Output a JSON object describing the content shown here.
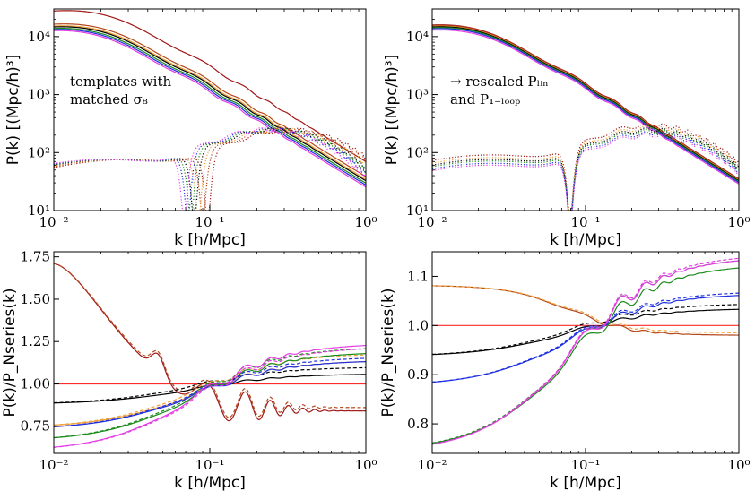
{
  "colors": {
    "black": "#000000",
    "red": "#ff2a2a",
    "darkred": "#a01818",
    "brown": "#b5481b",
    "orange": "#f2a33a",
    "green": "#1a8a1a",
    "blue": "#1f2fe0",
    "magenta": "#e43ce4",
    "gray": "#888888"
  },
  "chart_data": [
    {
      "id": "top-left",
      "type": "line",
      "xscale": "log",
      "yscale": "log",
      "xlim": [
        0.01,
        1
      ],
      "ylim": [
        10,
        30000
      ],
      "xlabel": "k  [h/Mpc]",
      "ylabel": "P(k)  [(Mpc/h)³]",
      "xticks": [
        {
          "value": 0.01,
          "label": "10⁻²"
        },
        {
          "value": 0.1,
          "label": "10⁻¹"
        },
        {
          "value": 1,
          "label": "10⁰"
        }
      ],
      "yticks": [
        {
          "value": 10,
          "label": "10¹"
        },
        {
          "value": 100,
          "label": "10²"
        },
        {
          "value": 1000,
          "label": "10³"
        },
        {
          "value": 10000,
          "label": "10⁴"
        }
      ],
      "annotation": [
        "templates with",
        "matched σ₈"
      ],
      "series": [
        {
          "color": "darkred",
          "style": "solid",
          "amp": 1.9,
          "shift": 0.93
        },
        {
          "color": "brown",
          "style": "solid",
          "amp": 1.12,
          "shift": 0.97
        },
        {
          "color": "orange",
          "style": "solid",
          "amp": 1.04,
          "shift": 0.99
        },
        {
          "color": "black",
          "style": "solid",
          "amp": 1.0,
          "shift": 1.0
        },
        {
          "color": "green",
          "style": "solid",
          "amp": 0.94,
          "shift": 1.02
        },
        {
          "color": "blue",
          "style": "solid",
          "amp": 0.9,
          "shift": 1.04
        },
        {
          "color": "magenta",
          "style": "solid",
          "amp": 0.86,
          "shift": 1.06
        },
        {
          "color": "darkred",
          "style": "dotted",
          "amp": 1.0,
          "shift": 0.82
        },
        {
          "color": "brown",
          "style": "dotted",
          "amp": 1.0,
          "shift": 0.88
        },
        {
          "color": "orange",
          "style": "dotted",
          "amp": 1.0,
          "shift": 0.94
        },
        {
          "color": "black",
          "style": "dotted",
          "amp": 1.0,
          "shift": 1.0
        },
        {
          "color": "green",
          "style": "dotted",
          "amp": 1.0,
          "shift": 1.05
        },
        {
          "color": "blue",
          "style": "dotted",
          "amp": 1.0,
          "shift": 1.1
        },
        {
          "color": "magenta",
          "style": "dotted",
          "amp": 1.0,
          "shift": 1.16
        }
      ]
    },
    {
      "id": "top-right",
      "type": "line",
      "xscale": "log",
      "yscale": "log",
      "xlim": [
        0.01,
        1
      ],
      "ylim": [
        10,
        30000
      ],
      "xlabel": "k  [h/Mpc]",
      "ylabel": "P(k)  [(Mpc/h)³]",
      "xticks": [
        {
          "value": 0.01,
          "label": "10⁻²"
        },
        {
          "value": 0.1,
          "label": "10⁻¹"
        },
        {
          "value": 1,
          "label": "10⁰"
        }
      ],
      "yticks": [
        {
          "value": 10,
          "label": "10¹"
        },
        {
          "value": 100,
          "label": "10²"
        },
        {
          "value": 1000,
          "label": "10³"
        },
        {
          "value": 10000,
          "label": "10⁴"
        }
      ],
      "annotation": [
        "→ rescaled Pₗᵢₙ",
        "and P₁₋ₗₒₒₚ"
      ],
      "series": [
        {
          "color": "darkred",
          "style": "solid",
          "amp": 1.08,
          "shift": 1.0
        },
        {
          "color": "brown",
          "style": "solid",
          "amp": 1.05,
          "shift": 1.0
        },
        {
          "color": "orange",
          "style": "solid",
          "amp": 1.02,
          "shift": 1.0
        },
        {
          "color": "black",
          "style": "solid",
          "amp": 1.0,
          "shift": 1.0
        },
        {
          "color": "green",
          "style": "solid",
          "amp": 0.97,
          "shift": 1.0
        },
        {
          "color": "blue",
          "style": "solid",
          "amp": 0.93,
          "shift": 1.0
        },
        {
          "color": "magenta",
          "style": "solid",
          "amp": 0.88,
          "shift": 1.0
        },
        {
          "color": "darkred",
          "style": "dotted",
          "amp": 1.2,
          "shift": 1.0
        },
        {
          "color": "orange",
          "style": "dotted",
          "amp": 1.08,
          "shift": 1.0
        },
        {
          "color": "black",
          "style": "dotted",
          "amp": 1.0,
          "shift": 1.0
        },
        {
          "color": "green",
          "style": "dotted",
          "amp": 0.94,
          "shift": 1.0
        },
        {
          "color": "blue",
          "style": "dotted",
          "amp": 0.86,
          "shift": 1.0
        },
        {
          "color": "magenta",
          "style": "dotted",
          "amp": 0.8,
          "shift": 1.0
        }
      ]
    },
    {
      "id": "bottom-left",
      "type": "line",
      "xscale": "log",
      "yscale": "linear",
      "xlim": [
        0.01,
        1
      ],
      "ylim": [
        0.59,
        1.78
      ],
      "xlabel": "k  [h/Mpc]",
      "ylabel": "P(k)/P_Nseries(k)",
      "xticks": [
        {
          "value": 0.01,
          "label": "10⁻²"
        },
        {
          "value": 0.1,
          "label": "10⁻¹"
        },
        {
          "value": 1,
          "label": "10⁰"
        }
      ],
      "yticks": [
        {
          "value": 0.75,
          "label": "0.75"
        },
        {
          "value": 1.0,
          "label": "1.00"
        },
        {
          "value": 1.25,
          "label": "1.25"
        },
        {
          "value": 1.5,
          "label": "1.50"
        },
        {
          "value": 1.75,
          "label": "1.75"
        }
      ],
      "series": [
        {
          "color": "red",
          "style": "solid",
          "kind": "flat",
          "v0": 1.0,
          "v1": 1.0
        },
        {
          "color": "darkred",
          "style": "solid",
          "kind": "hump",
          "v0": 1.71,
          "v1": 0.84
        },
        {
          "color": "brown",
          "style": "dashed",
          "kind": "hump",
          "v0": 1.71,
          "v1": 0.86
        },
        {
          "color": "black",
          "style": "solid",
          "kind": "rise",
          "v0": 0.88,
          "v1": 1.06
        },
        {
          "color": "black",
          "style": "dashed",
          "kind": "rise",
          "v0": 0.88,
          "v1": 1.1
        },
        {
          "color": "orange",
          "style": "solid",
          "kind": "rise",
          "v0": 0.74,
          "v1": 1.14
        },
        {
          "color": "orange",
          "style": "dashed",
          "kind": "rise",
          "v0": 0.74,
          "v1": 1.18
        },
        {
          "color": "green",
          "style": "solid",
          "kind": "rise",
          "v0": 0.66,
          "v1": 1.19
        },
        {
          "color": "green",
          "style": "dashed",
          "kind": "rise",
          "v0": 0.66,
          "v1": 1.22
        },
        {
          "color": "blue",
          "style": "solid",
          "kind": "rise",
          "v0": 0.73,
          "v1": 1.14
        },
        {
          "color": "blue",
          "style": "dashed",
          "kind": "rise",
          "v0": 0.73,
          "v1": 1.16
        },
        {
          "color": "magenta",
          "style": "solid",
          "kind": "rise",
          "v0": 0.6,
          "v1": 1.24
        },
        {
          "color": "magenta",
          "style": "dashed",
          "kind": "rise",
          "v0": 0.6,
          "v1": 1.22
        }
      ]
    },
    {
      "id": "bottom-right",
      "type": "line",
      "xscale": "log",
      "yscale": "linear",
      "xlim": [
        0.01,
        1
      ],
      "ylim": [
        0.74,
        1.15
      ],
      "xlabel": "k  [h/Mpc]",
      "ylabel": "P(k)/P_Nseries(k)",
      "xticks": [
        {
          "value": 0.01,
          "label": "10⁻²"
        },
        {
          "value": 0.1,
          "label": "10⁻¹"
        },
        {
          "value": 1,
          "label": "10⁰"
        }
      ],
      "yticks": [
        {
          "value": 0.8,
          "label": "0.8"
        },
        {
          "value": 0.9,
          "label": "0.9"
        },
        {
          "value": 1.0,
          "label": "1.0"
        },
        {
          "value": 1.1,
          "label": "1.1"
        }
      ],
      "series": [
        {
          "color": "red",
          "style": "solid",
          "kind": "flat",
          "v0": 1.0,
          "v1": 1.0
        },
        {
          "color": "brown",
          "style": "solid",
          "kind": "fall",
          "v0": 1.082,
          "v1": 0.98
        },
        {
          "color": "orange",
          "style": "dashed",
          "kind": "fall",
          "v0": 1.082,
          "v1": 0.985
        },
        {
          "color": "black",
          "style": "solid",
          "kind": "rise",
          "v0": 0.937,
          "v1": 1.035
        },
        {
          "color": "black",
          "style": "dashed",
          "kind": "rise",
          "v0": 0.937,
          "v1": 1.045
        },
        {
          "color": "blue",
          "style": "solid",
          "kind": "rise",
          "v0": 0.877,
          "v1": 1.065
        },
        {
          "color": "blue",
          "style": "dashed",
          "kind": "rise",
          "v0": 0.877,
          "v1": 1.07
        },
        {
          "color": "green",
          "style": "solid",
          "kind": "rise",
          "v0": 0.745,
          "v1": 1.125
        },
        {
          "color": "green",
          "style": "dashed",
          "kind": "rise",
          "v0": 0.745,
          "v1": 1.14
        },
        {
          "color": "magenta",
          "style": "solid",
          "kind": "rise",
          "v0": 0.742,
          "v1": 1.14
        },
        {
          "color": "magenta",
          "style": "dashed",
          "kind": "rise",
          "v0": 0.742,
          "v1": 1.145
        }
      ]
    }
  ]
}
